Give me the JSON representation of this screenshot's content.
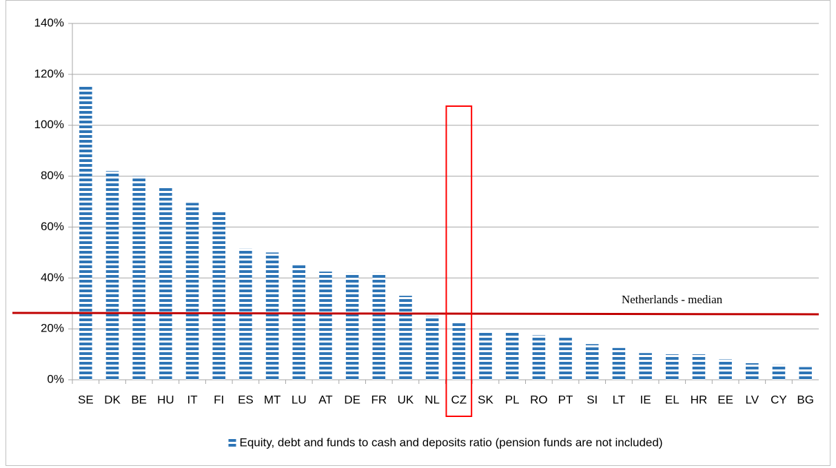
{
  "chart_data": {
    "type": "bar",
    "categories": [
      "SE",
      "DK",
      "BE",
      "HU",
      "IT",
      "FI",
      "ES",
      "MT",
      "LU",
      "AT",
      "DE",
      "FR",
      "UK",
      "NL",
      "CZ",
      "SK",
      "PL",
      "RO",
      "PT",
      "SI",
      "LT",
      "IE",
      "EL",
      "HR",
      "EE",
      "LV",
      "CY",
      "BG"
    ],
    "series": [
      {
        "name": "Equity, debt and funds to cash and deposits ratio (pension funds are not included)",
        "color": "#2e75b6",
        "values": [
          115.5,
          82,
          80,
          76,
          69.5,
          66,
          51.5,
          50,
          45.5,
          42.5,
          42,
          42,
          33,
          25,
          22.5,
          19,
          18.5,
          17.5,
          16.5,
          14,
          12.5,
          10.5,
          10,
          10,
          8,
          6.5,
          6,
          5
        ]
      }
    ],
    "ylim": [
      0,
      140
    ],
    "yticks": [
      {
        "value": 0,
        "label": "0%"
      },
      {
        "value": 20,
        "label": "20%"
      },
      {
        "value": 40,
        "label": "40%"
      },
      {
        "value": 60,
        "label": "60%"
      },
      {
        "value": 80,
        "label": "80%"
      },
      {
        "value": 100,
        "label": "100%"
      },
      {
        "value": 120,
        "label": "120%"
      },
      {
        "value": 140,
        "label": "140%"
      }
    ],
    "grid": true,
    "legend": "bottom",
    "reference_line": {
      "label": "Netherlands - median",
      "value": 26,
      "color": "#c00000"
    },
    "highlight": {
      "category": "CZ",
      "color": "#ff0000"
    }
  }
}
